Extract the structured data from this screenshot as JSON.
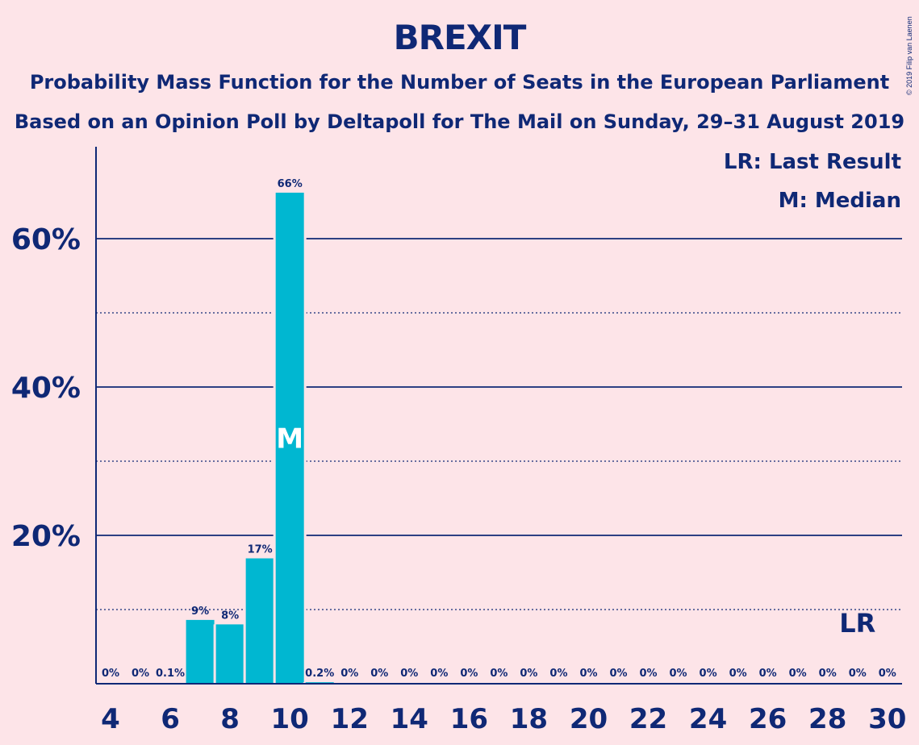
{
  "chart_data": {
    "type": "bar",
    "title": "BREXIT",
    "subtitle_line1": "Probability Mass Function for the Number of Seats in the European Parliament",
    "subtitle_line2": "Based on an Opinion Poll by Deltapoll for The Mail on Sunday, 29–31 August 2019",
    "copyright": "© 2019 Filip van Laenen",
    "legend": [
      "LR: Last Result",
      "M: Median"
    ],
    "legend_placement": "top-right",
    "x": [
      4,
      5,
      6,
      7,
      8,
      9,
      10,
      11,
      12,
      13,
      14,
      15,
      16,
      17,
      18,
      19,
      20,
      21,
      22,
      23,
      24,
      25,
      26,
      27,
      28,
      29,
      30
    ],
    "values": [
      0,
      0,
      0.1,
      8.6,
      8.0,
      16.9,
      66.2,
      0.2,
      0,
      0,
      0,
      0,
      0,
      0,
      0,
      0,
      0,
      0,
      0,
      0,
      0,
      0,
      0,
      0,
      0,
      0,
      0
    ],
    "data_labels": [
      "0%",
      "0%",
      "0.1%",
      "9%",
      "8%",
      "17%",
      "66%",
      "0.2%",
      "0%",
      "0%",
      "0%",
      "0%",
      "0%",
      "0%",
      "0%",
      "0%",
      "0%",
      "0%",
      "0%",
      "0%",
      "0%",
      "0%",
      "0%",
      "0%",
      "0%",
      "0%",
      "0%"
    ],
    "x_ticks": [
      4,
      6,
      8,
      10,
      12,
      14,
      16,
      18,
      20,
      22,
      24,
      26,
      28,
      30
    ],
    "y_ticks": [
      20,
      40,
      60
    ],
    "y_tick_labels": [
      "20%",
      "40%",
      "60%"
    ],
    "y_minor_gridlines": [
      10,
      30,
      50
    ],
    "ylim": [
      0,
      72
    ],
    "median_seat": 10,
    "median_label": "M",
    "last_result_seat": 29,
    "last_result_label": "LR",
    "colors": {
      "bar": "#00b7d1",
      "background": "#fde4e8",
      "text": "#0f2875"
    }
  }
}
